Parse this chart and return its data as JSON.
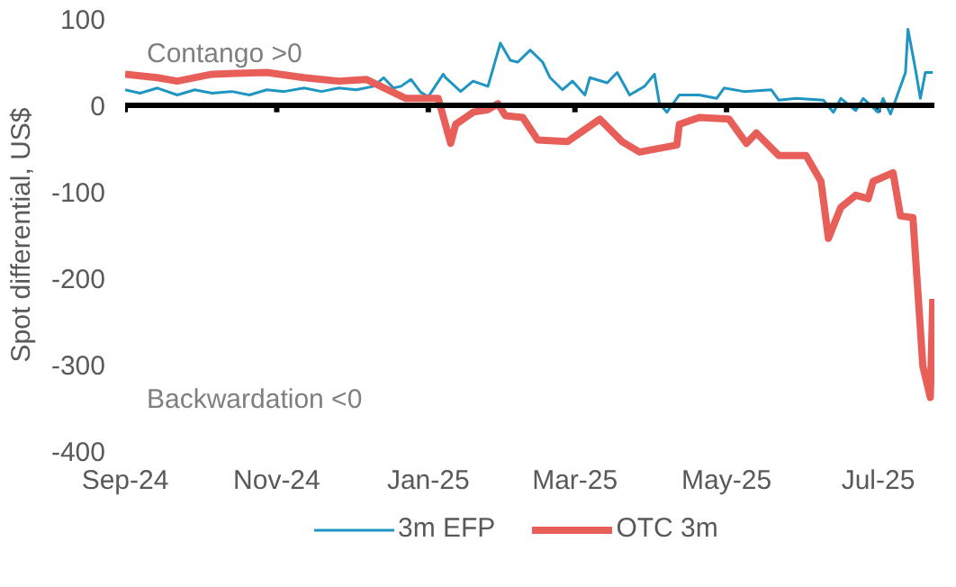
{
  "chart_data": {
    "type": "line",
    "ylabel": "Spot differential, US$",
    "annotations": [
      "Contango >0",
      "Backwardation <0"
    ],
    "xlim": [
      "2024-09-01",
      "2025-07-24"
    ],
    "xticks": [
      {
        "value": "2024-09-01",
        "label": "Sep-24"
      },
      {
        "value": "2024-11-01",
        "label": "Nov-24"
      },
      {
        "value": "2025-01-01",
        "label": "Jan-25"
      },
      {
        "value": "2025-03-01",
        "label": "Mar-25"
      },
      {
        "value": "2025-05-01",
        "label": "May-25"
      },
      {
        "value": "2025-07-01",
        "label": "Jul-25"
      }
    ],
    "ylim": [
      -400,
      100
    ],
    "yticks": [
      -400,
      -300,
      -200,
      -100,
      0,
      100
    ],
    "grid": false,
    "legend": "bottom",
    "ref_lines": [
      {
        "axis": "y",
        "value": 0,
        "color": "#000000"
      }
    ],
    "series": [
      {
        "name": "3m EFP",
        "color": "#1f95c2",
        "x": [
          "2024-09-01",
          "2024-09-07",
          "2024-09-14",
          "2024-09-22",
          "2024-09-29",
          "2024-10-06",
          "2024-10-14",
          "2024-10-21",
          "2024-10-28",
          "2024-11-04",
          "2024-11-12",
          "2024-11-19",
          "2024-11-26",
          "2024-12-03",
          "2024-12-10",
          "2024-12-14",
          "2024-12-18",
          "2024-12-21",
          "2024-12-25",
          "2024-12-29",
          "2025-01-01",
          "2025-01-07",
          "2025-01-08",
          "2025-01-14",
          "2025-01-19",
          "2025-01-25",
          "2025-01-30",
          "2025-02-03",
          "2025-02-06",
          "2025-02-11",
          "2025-02-16",
          "2025-02-19",
          "2025-02-24",
          "2025-02-28",
          "2025-03-05",
          "2025-03-07",
          "2025-03-14",
          "2025-03-18",
          "2025-03-23",
          "2025-03-29",
          "2025-04-02",
          "2025-04-04",
          "2025-04-07",
          "2025-04-12",
          "2025-04-20",
          "2025-04-27",
          "2025-04-30",
          "2025-05-08",
          "2025-05-19",
          "2025-05-22",
          "2025-05-29",
          "2025-06-09",
          "2025-06-13",
          "2025-06-16",
          "2025-06-22",
          "2025-06-25",
          "2025-07-01",
          "2025-07-03",
          "2025-07-06",
          "2025-07-08",
          "2025-07-12",
          "2025-07-13",
          "2025-07-16",
          "2025-07-18",
          "2025-07-20",
          "2025-07-23"
        ],
        "values": [
          18,
          14,
          20,
          12,
          18,
          14,
          16,
          12,
          18,
          16,
          20,
          16,
          20,
          18,
          22,
          32,
          20,
          22,
          30,
          15,
          10,
          36,
          32,
          16,
          28,
          22,
          72,
          52,
          50,
          64,
          50,
          32,
          18,
          28,
          12,
          32,
          26,
          38,
          12,
          22,
          36,
          2,
          -8,
          12,
          12,
          8,
          20,
          16,
          18,
          6,
          8,
          6,
          -8,
          8,
          -6,
          8,
          -8,
          8,
          -10,
          6,
          38,
          88,
          42,
          8,
          38,
          38
        ]
      },
      {
        "name": "OTC 3m",
        "color": "#e85f5a",
        "x": [
          "2024-09-01",
          "2024-09-14",
          "2024-09-22",
          "2024-10-06",
          "2024-10-28",
          "2024-11-12",
          "2024-11-26",
          "2024-12-07",
          "2024-12-10",
          "2024-12-23",
          "2025-01-05",
          "2025-01-10",
          "2025-01-12",
          "2025-01-19",
          "2025-01-25",
          "2025-01-29",
          "2025-02-01",
          "2025-02-08",
          "2025-02-14",
          "2025-02-26",
          "2025-03-11",
          "2025-03-20",
          "2025-03-27",
          "2025-04-11",
          "2025-04-12",
          "2025-04-20",
          "2025-05-02",
          "2025-05-09",
          "2025-05-13",
          "2025-05-22",
          "2025-06-02",
          "2025-06-08",
          "2025-06-11",
          "2025-06-16",
          "2025-06-22",
          "2025-06-27",
          "2025-06-29",
          "2025-07-07",
          "2025-07-10",
          "2025-07-15",
          "2025-07-19",
          "2025-07-22",
          "2025-07-23"
        ],
        "values": [
          36,
          32,
          28,
          36,
          38,
          32,
          28,
          30,
          26,
          8,
          8,
          -44,
          -22,
          -8,
          -5,
          2,
          -12,
          -14,
          -40,
          -42,
          -16,
          -42,
          -54,
          -46,
          -22,
          -14,
          -16,
          -44,
          -32,
          -58,
          -58,
          -88,
          -154,
          -118,
          -104,
          -108,
          -88,
          -78,
          -128,
          -130,
          -302,
          -338,
          -224
        ]
      }
    ]
  }
}
